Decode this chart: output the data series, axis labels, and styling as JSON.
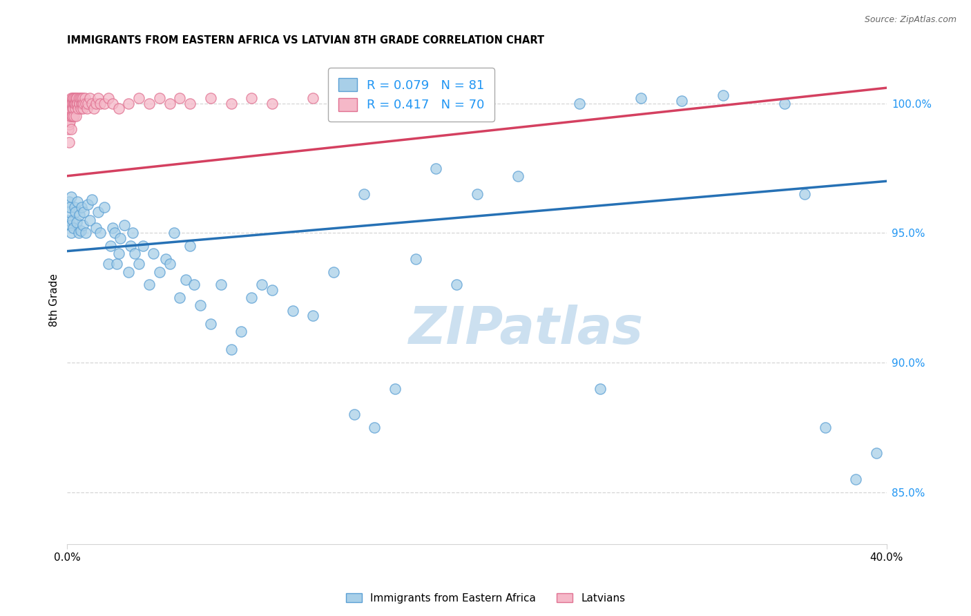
{
  "title": "IMMIGRANTS FROM EASTERN AFRICA VS LATVIAN 8TH GRADE CORRELATION CHART",
  "source": "Source: ZipAtlas.com",
  "ylabel": "8th Grade",
  "xlim": [
    0.0,
    40.0
  ],
  "ylim": [
    83.0,
    101.8
  ],
  "blue_R": 0.079,
  "blue_N": 81,
  "pink_R": 0.417,
  "pink_N": 70,
  "blue_color": "#a8cfe8",
  "pink_color": "#f5b8c8",
  "blue_edge_color": "#5a9fd4",
  "pink_edge_color": "#e07090",
  "blue_line_color": "#2671b5",
  "pink_line_color": "#d44060",
  "right_tick_color": "#2196F3",
  "ytick_vals": [
    100.0,
    95.0,
    90.0,
    85.0
  ],
  "grid_color": "#cccccc",
  "watermark_text": "ZIPatlas",
  "watermark_color": "#cce0f0",
  "blue_scatter_x": [
    0.05,
    0.08,
    0.1,
    0.12,
    0.15,
    0.18,
    0.2,
    0.25,
    0.3,
    0.35,
    0.4,
    0.45,
    0.5,
    0.55,
    0.6,
    0.65,
    0.7,
    0.75,
    0.8,
    0.9,
    1.0,
    1.1,
    1.2,
    1.4,
    1.5,
    1.6,
    1.8,
    2.0,
    2.1,
    2.2,
    2.3,
    2.4,
    2.5,
    2.6,
    2.8,
    3.0,
    3.1,
    3.2,
    3.3,
    3.5,
    3.7,
    4.0,
    4.2,
    4.5,
    4.8,
    5.0,
    5.2,
    5.5,
    5.8,
    6.0,
    6.2,
    6.5,
    7.0,
    7.5,
    8.0,
    8.5,
    9.0,
    9.5,
    10.0,
    11.0,
    12.0,
    13.0,
    14.0,
    15.0,
    16.0,
    18.0,
    20.0,
    22.0,
    25.0,
    28.0,
    30.0,
    32.0,
    35.0,
    36.0,
    37.0,
    38.5,
    39.5,
    14.5,
    17.0,
    19.0,
    26.0
  ],
  "blue_scatter_y": [
    95.5,
    96.2,
    95.8,
    96.0,
    95.3,
    96.4,
    95.0,
    95.5,
    95.2,
    96.0,
    95.8,
    95.4,
    96.2,
    95.0,
    95.7,
    95.1,
    96.0,
    95.3,
    95.8,
    95.0,
    96.1,
    95.5,
    96.3,
    95.2,
    95.8,
    95.0,
    96.0,
    93.8,
    94.5,
    95.2,
    95.0,
    93.8,
    94.2,
    94.8,
    95.3,
    93.5,
    94.5,
    95.0,
    94.2,
    93.8,
    94.5,
    93.0,
    94.2,
    93.5,
    94.0,
    93.8,
    95.0,
    92.5,
    93.2,
    94.5,
    93.0,
    92.2,
    91.5,
    93.0,
    90.5,
    91.2,
    92.5,
    93.0,
    92.8,
    92.0,
    91.8,
    93.5,
    88.0,
    87.5,
    89.0,
    97.5,
    96.5,
    97.2,
    100.0,
    100.2,
    100.1,
    100.3,
    100.0,
    96.5,
    87.5,
    85.5,
    86.5,
    96.5,
    94.0,
    93.0,
    89.0
  ],
  "pink_scatter_x": [
    0.05,
    0.07,
    0.08,
    0.1,
    0.1,
    0.12,
    0.13,
    0.15,
    0.15,
    0.17,
    0.18,
    0.2,
    0.2,
    0.22,
    0.23,
    0.25,
    0.25,
    0.27,
    0.28,
    0.3,
    0.3,
    0.32,
    0.33,
    0.35,
    0.37,
    0.38,
    0.4,
    0.42,
    0.44,
    0.45,
    0.47,
    0.5,
    0.52,
    0.55,
    0.58,
    0.6,
    0.62,
    0.65,
    0.68,
    0.7,
    0.73,
    0.75,
    0.78,
    0.8,
    0.85,
    0.9,
    0.95,
    1.0,
    1.1,
    1.2,
    1.3,
    1.4,
    1.5,
    1.6,
    1.8,
    2.0,
    2.2,
    2.5,
    3.0,
    3.5,
    4.0,
    4.5,
    5.0,
    5.5,
    6.0,
    7.0,
    8.0,
    9.0,
    10.0,
    12.0
  ],
  "pink_scatter_y": [
    99.5,
    99.0,
    98.5,
    99.2,
    100.0,
    99.8,
    99.3,
    100.0,
    99.5,
    99.8,
    100.2,
    99.0,
    100.0,
    99.5,
    100.0,
    99.8,
    100.2,
    99.5,
    100.0,
    99.8,
    100.2,
    100.0,
    99.5,
    100.0,
    100.2,
    99.8,
    100.0,
    100.2,
    99.5,
    100.0,
    100.2,
    100.0,
    99.8,
    100.2,
    100.0,
    100.0,
    100.2,
    99.8,
    100.0,
    100.2,
    100.0,
    100.2,
    99.8,
    100.0,
    100.2,
    100.0,
    99.8,
    100.0,
    100.2,
    100.0,
    99.8,
    100.0,
    100.2,
    100.0,
    100.0,
    100.2,
    100.0,
    99.8,
    100.0,
    100.2,
    100.0,
    100.2,
    100.0,
    100.2,
    100.0,
    100.2,
    100.0,
    100.2,
    100.0,
    100.2
  ],
  "blue_trend_x0": 0.0,
  "blue_trend_y0": 94.3,
  "blue_trend_x1": 40.0,
  "blue_trend_y1": 97.0,
  "pink_trend_x0": 0.0,
  "pink_trend_y0": 97.2,
  "pink_trend_x1": 40.0,
  "pink_trend_y1": 100.6
}
